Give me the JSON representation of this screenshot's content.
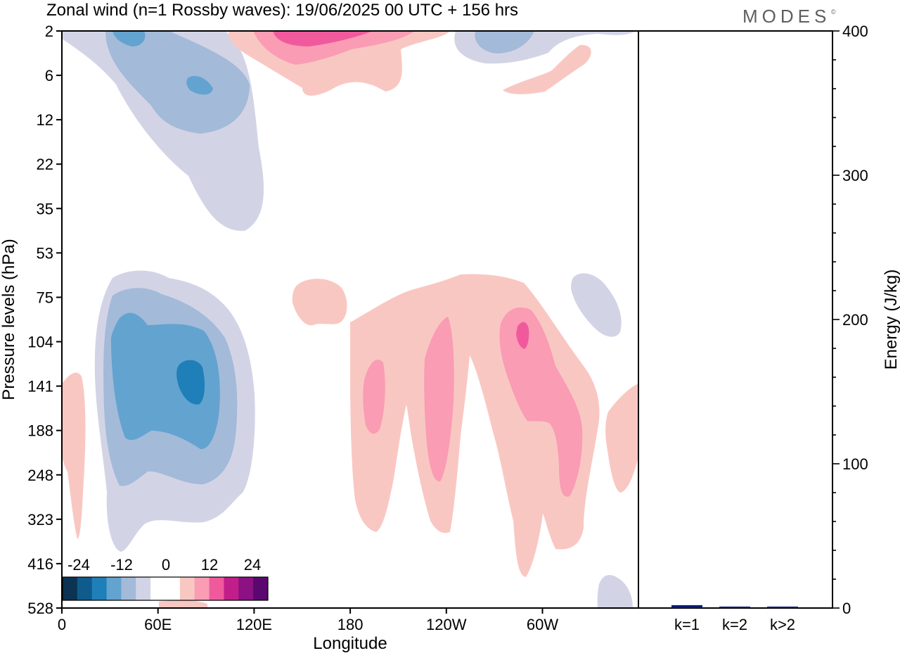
{
  "header": {
    "title": "Zonal wind (n=1 Rossby waves):  19/06/2025  00 UTC  + 156 hrs",
    "brand": "MODES",
    "brand_mark": "©"
  },
  "chart_data": [
    {
      "type": "heatmap",
      "title": "Zonal wind (n=1 Rossby waves):  19/06/2025  00 UTC  + 156 hrs",
      "xlabel": "Longitude",
      "ylabel": "Pressure levels (hPa)",
      "x_ticks": [
        "0",
        "60E",
        "120E",
        "180",
        "120W",
        "60W"
      ],
      "y_ticks": [
        "2",
        "6",
        "12",
        "22",
        "35",
        "53",
        "75",
        "104",
        "141",
        "188",
        "248",
        "323",
        "416",
        "528"
      ],
      "colorbar": {
        "labels": [
          "-24",
          "-12",
          "0",
          "12",
          "24"
        ],
        "colors": [
          "#0d3352",
          "#0f5c8c",
          "#1f7fb8",
          "#63a3cf",
          "#a3bad9",
          "#d2d4e6",
          "#ffffff",
          "#ffffff",
          "#f9c7c2",
          "#f99cb4",
          "#f05a9d",
          "#c21e8a",
          "#8c1182",
          "#5a0870"
        ]
      },
      "regions": [
        {
          "level": -1,
          "cx": 45,
          "cy": 43,
          "rx": 36,
          "ry": 27
        },
        {
          "level": -2,
          "cx": 48,
          "cy": 43,
          "rx": 30,
          "ry": 21
        },
        {
          "level": -3,
          "cx": 52,
          "cy": 43,
          "rx": 22,
          "ry": 14
        },
        {
          "level": -4,
          "cx": 72,
          "cy": 43,
          "rx": 5,
          "ry": 5
        },
        {
          "level": 1,
          "cx": 130,
          "cy": 37,
          "rx": 45,
          "ry": 25
        },
        {
          "level": 2,
          "cx": 153,
          "cy": 37,
          "rx": 9,
          "ry": 15
        },
        {
          "level": 2,
          "cx": 173,
          "cy": 35,
          "rx": 12,
          "ry": 18
        },
        {
          "level": 2,
          "cx": 225,
          "cy": 36,
          "rx": 17,
          "ry": 18
        },
        {
          "level": 3,
          "cx": 237,
          "cy": 26,
          "rx": 2,
          "ry": 2
        },
        {
          "level": -1,
          "cx": 320,
          "cy": 36,
          "rx": 14,
          "ry": 7
        },
        {
          "level": -1,
          "cx": 345,
          "cy": 68,
          "rx": 6,
          "ry": 14
        }
      ]
    },
    {
      "type": "bar",
      "categories": [
        "k=1",
        "k=2",
        "k>2"
      ],
      "values": [
        2,
        1,
        1
      ],
      "ylabel": "Energy (J/kg)",
      "ylim": [
        0,
        400
      ],
      "y_ticks": [
        "0",
        "100",
        "200",
        "300",
        "400"
      ],
      "bar_color": "#0a1a7a"
    }
  ]
}
